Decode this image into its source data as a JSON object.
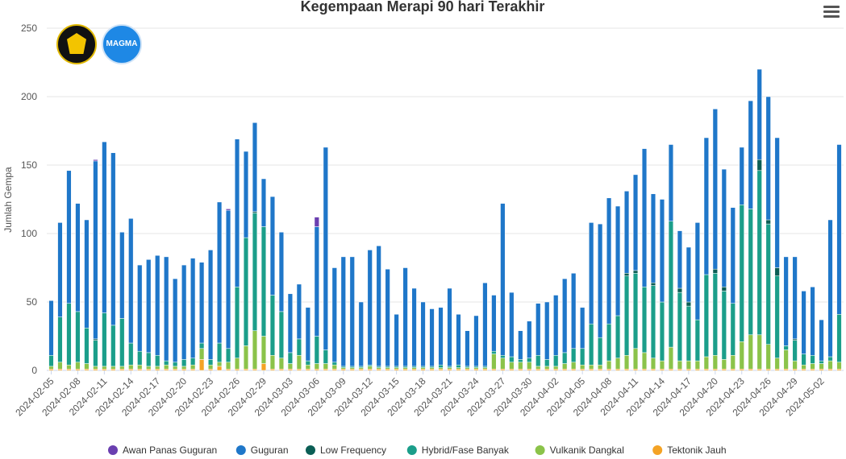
{
  "title": "Kegempaan Merapi 90 hari Terakhir",
  "chart_data": {
    "type": "bar",
    "stacked": true,
    "title": "Kegempaan Merapi 90 hari Terakhir",
    "ylabel": "Jumlah Gempa",
    "xlabel": "",
    "ylim": [
      0,
      250
    ],
    "yticks": [
      0,
      50,
      100,
      150,
      200,
      250
    ],
    "grid": true,
    "legend_position": "bottom",
    "start_date": "2024-02-05",
    "xtick_labels": [
      "2024-02-05",
      "2024-02-08",
      "2024-02-11",
      "2024-02-14",
      "2024-02-17",
      "2024-02-20",
      "2024-02-23",
      "2024-02-26",
      "2024-02-29",
      "2024-03-03",
      "2024-03-06",
      "2024-03-09",
      "2024-03-12",
      "2024-03-15",
      "2024-03-18",
      "2024-03-21",
      "2024-03-24",
      "2024-03-27",
      "2024-03-30",
      "2024-04-02",
      "2024-04-05",
      "2024-04-08",
      "2024-04-11",
      "2024-04-14",
      "2024-04-17",
      "2024-04-20",
      "2024-04-23",
      "2024-04-26",
      "2024-04-29",
      "2024-05-02"
    ],
    "series": [
      {
        "name": "Tektonik Jauh",
        "color": "#f4a325",
        "values": [
          1,
          1,
          1,
          1,
          1,
          1,
          1,
          1,
          1,
          1,
          1,
          1,
          1,
          1,
          1,
          1,
          1,
          8,
          1,
          3,
          1,
          1,
          1,
          1,
          5,
          1,
          1,
          1,
          1,
          1,
          1,
          1,
          1,
          1,
          1,
          1,
          1,
          1,
          1,
          1,
          1,
          1,
          1,
          1,
          1,
          1,
          1,
          1,
          1,
          1,
          1,
          1,
          1,
          1,
          1,
          1,
          1,
          1,
          1,
          1,
          1,
          1,
          1,
          1,
          1,
          1,
          1,
          1,
          1,
          1,
          1,
          1,
          1,
          1,
          1,
          1,
          1,
          1,
          1,
          1,
          1,
          1,
          1,
          1,
          1,
          1,
          1,
          1,
          1,
          1
        ]
      },
      {
        "name": "Vulkanik Dangkal",
        "color": "#8bc34a",
        "values": [
          2,
          5,
          3,
          5,
          4,
          2,
          2,
          2,
          2,
          3,
          3,
          2,
          2,
          3,
          2,
          2,
          3,
          8,
          3,
          3,
          5,
          8,
          17,
          28,
          20,
          10,
          8,
          4,
          10,
          3,
          4,
          4,
          3,
          1,
          1,
          1,
          2,
          1,
          1,
          1,
          1,
          1,
          1,
          1,
          1,
          1,
          1,
          1,
          1,
          1,
          11,
          8,
          5,
          5,
          5,
          2,
          2,
          2,
          4,
          5,
          3,
          3,
          3,
          6,
          8,
          10,
          15,
          12,
          8,
          6,
          16,
          6,
          6,
          6,
          9,
          10,
          7,
          10,
          20,
          25,
          25,
          18,
          8,
          14,
          6,
          3,
          4,
          4,
          6,
          5
        ]
      },
      {
        "name": "Hybrid/Fase Banyak",
        "color": "#1b9e8a",
        "values": [
          8,
          33,
          45,
          37,
          26,
          19,
          39,
          30,
          35,
          16,
          10,
          10,
          8,
          3,
          3,
          5,
          5,
          4,
          4,
          14,
          10,
          52,
          79,
          86,
          80,
          44,
          34,
          8,
          12,
          3,
          20,
          10,
          2,
          1,
          1,
          1,
          1,
          1,
          1,
          1,
          1,
          1,
          1,
          1,
          2,
          1,
          2,
          1,
          1,
          1,
          2,
          2,
          4,
          2,
          3,
          8,
          5,
          8,
          8,
          10,
          12,
          30,
          20,
          27,
          31,
          58,
          55,
          48,
          53,
          43,
          92,
          50,
          40,
          30,
          60,
          60,
          50,
          38,
          100,
          92,
          120,
          88,
          60,
          3,
          15,
          8,
          6,
          2,
          3,
          35
        ]
      },
      {
        "name": "Low Frequency",
        "color": "#0b5e55",
        "values": [
          0,
          0,
          0,
          0,
          0,
          1,
          0,
          0,
          0,
          0,
          0,
          0,
          0,
          0,
          0,
          0,
          0,
          0,
          0,
          0,
          0,
          0,
          0,
          1,
          0,
          0,
          0,
          0,
          0,
          0,
          0,
          0,
          0,
          0,
          0,
          0,
          0,
          0,
          0,
          0,
          0,
          0,
          0,
          0,
          0,
          0,
          0,
          0,
          0,
          0,
          0,
          0,
          0,
          0,
          0,
          0,
          0,
          0,
          0,
          0,
          0,
          0,
          0,
          0,
          0,
          2,
          2,
          0,
          2,
          0,
          0,
          3,
          3,
          0,
          0,
          3,
          3,
          0,
          0,
          0,
          8,
          3,
          6,
          0,
          1,
          0,
          0,
          0,
          0,
          0
        ]
      },
      {
        "name": "Guguran",
        "color": "#1f77c9",
        "values": [
          40,
          69,
          97,
          79,
          79,
          130,
          125,
          126,
          63,
          91,
          63,
          68,
          73,
          76,
          61,
          69,
          73,
          59,
          80,
          103,
          101,
          108,
          63,
          65,
          35,
          72,
          58,
          43,
          40,
          39,
          80,
          148,
          69,
          80,
          80,
          47,
          84,
          88,
          71,
          38,
          72,
          57,
          47,
          42,
          42,
          57,
          37,
          26,
          37,
          61,
          41,
          111,
          47,
          21,
          27,
          38,
          42,
          44,
          54,
          55,
          30,
          74,
          83,
          92,
          80,
          60,
          70,
          101,
          65,
          75,
          56,
          42,
          40,
          71,
          100,
          117,
          86,
          70,
          42,
          79,
          66,
          90,
          95,
          65,
          60,
          46,
          50,
          30,
          100,
          124
        ]
      },
      {
        "name": "Awan Panas Guguran",
        "color": "#6a3fb0",
        "values": [
          0,
          0,
          0,
          0,
          0,
          1,
          0,
          0,
          0,
          0,
          0,
          0,
          0,
          0,
          0,
          0,
          0,
          0,
          0,
          0,
          1,
          0,
          0,
          0,
          0,
          0,
          0,
          0,
          0,
          0,
          7,
          0,
          0,
          0,
          0,
          0,
          0,
          0,
          0,
          0,
          0,
          0,
          0,
          0,
          0,
          0,
          0,
          0,
          0,
          0,
          0,
          0,
          0,
          0,
          0,
          0,
          0,
          0,
          0,
          0,
          0,
          0,
          0,
          0,
          0,
          0,
          0,
          0,
          0,
          0,
          0,
          0,
          0,
          0,
          0,
          0,
          0,
          0,
          0,
          0,
          0,
          0,
          0,
          0,
          0,
          0,
          0,
          0,
          0,
          0
        ]
      }
    ]
  },
  "legend": {
    "items": [
      {
        "name": "Awan Panas Guguran",
        "color": "#6a3fb0"
      },
      {
        "name": "Guguran",
        "color": "#1f77c9"
      },
      {
        "name": "Low Frequency",
        "color": "#0b5e55"
      },
      {
        "name": "Hybrid/Fase Banyak",
        "color": "#1b9e8a"
      },
      {
        "name": "Vulkanik Dangkal",
        "color": "#8bc34a"
      },
      {
        "name": "Tektonik Jauh",
        "color": "#f4a325"
      }
    ]
  },
  "logos": {
    "esdm": "esdm-logo",
    "magma": "MAGMA"
  }
}
